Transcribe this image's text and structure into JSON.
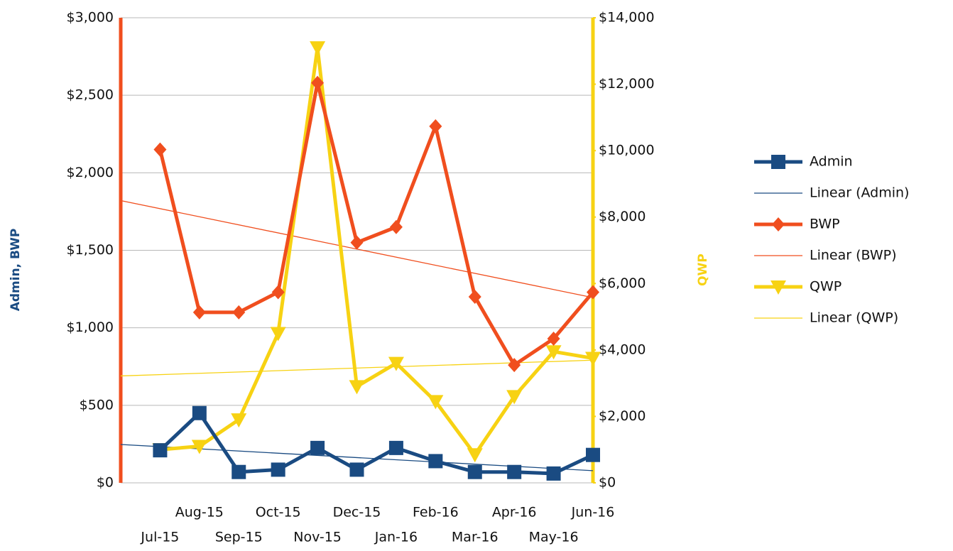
{
  "chart_data": {
    "type": "line",
    "categories": [
      "Jul-15",
      "Aug-15",
      "Sep-15",
      "Oct-15",
      "Nov-15",
      "Dec-15",
      "Jan-16",
      "Feb-16",
      "Mar-16",
      "Apr-16",
      "May-16",
      "Jun-16"
    ],
    "y_label": "Admin, BWP",
    "y2_label": "QWP",
    "ylim": [
      0,
      3000
    ],
    "yticks": [
      {
        "value": 0,
        "label": "$0"
      },
      {
        "value": 500,
        "label": "$500"
      },
      {
        "value": 1000,
        "label": "$1,000"
      },
      {
        "value": 1500,
        "label": "$1,500"
      },
      {
        "value": 2000,
        "label": "$2,000"
      },
      {
        "value": 2500,
        "label": "$2,500"
      },
      {
        "value": 3000,
        "label": "$3,000"
      }
    ],
    "y2lim": [
      0,
      14000
    ],
    "y2ticks": [
      {
        "value": 0,
        "label": "$0"
      },
      {
        "value": 2000,
        "label": "$2,000"
      },
      {
        "value": 4000,
        "label": "$4,000"
      },
      {
        "value": 6000,
        "label": "$6,000"
      },
      {
        "value": 8000,
        "label": "$8,000"
      },
      {
        "value": 10000,
        "label": "$10,000"
      },
      {
        "value": 12000,
        "label": "$12,000"
      },
      {
        "value": 14000,
        "label": "$14,000"
      }
    ],
    "grid": true,
    "legend": "right",
    "series": [
      {
        "name": "Admin",
        "color": "#1a4b82",
        "marker": "square",
        "values": [
          210,
          450,
          70,
          85,
          225,
          85,
          225,
          140,
          70,
          70,
          60,
          180
        ],
        "trendline": {
          "name": "Linear (Admin)",
          "color": "#1a4b82"
        }
      },
      {
        "name": "BWP",
        "color": "#f04e1e",
        "marker": "diamond",
        "values": [
          2150,
          1100,
          1100,
          1230,
          2580,
          1550,
          1650,
          2300,
          1200,
          760,
          930,
          1230
        ],
        "trendline": {
          "name": "Linear (BWP)",
          "color": "#f04e1e"
        }
      },
      {
        "name": "QWP",
        "color": "#f7d213",
        "marker": "triangle-down",
        "axis": "y2",
        "values": [
          1000,
          1100,
          1900,
          4500,
          13100,
          2900,
          3600,
          2450,
          850,
          2600,
          3950,
          3750
        ],
        "trendline": {
          "name": "Linear (QWP)",
          "color": "#f7d213"
        }
      }
    ]
  }
}
